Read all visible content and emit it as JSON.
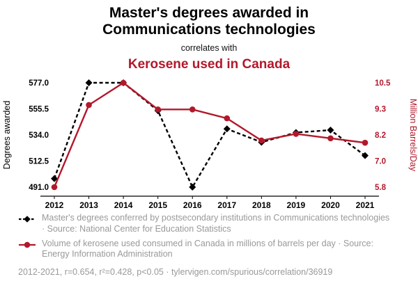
{
  "header": {
    "title": "Master's degrees awarded in Communications technologies",
    "connector": "correlates with",
    "subtitle": "Kerosene used in Canada"
  },
  "theme": {
    "accent_red": "#b2182b",
    "muted_gray": "#999999",
    "black": "#000000"
  },
  "chart_data": {
    "type": "line",
    "x": [
      "2012",
      "2013",
      "2014",
      "2015",
      "2016",
      "2017",
      "2018",
      "2019",
      "2020",
      "2021"
    ],
    "series": [
      {
        "name": "Master's degrees awarded in Communications technologies",
        "axis": "left",
        "color": "#000000",
        "line_style": "dashed",
        "marker": "diamond",
        "values": [
          498,
          577,
          577,
          554,
          491,
          539,
          528,
          536,
          538,
          517
        ]
      },
      {
        "name": "Kerosene used in Canada",
        "axis": "right",
        "color": "#b2182b",
        "line_style": "solid",
        "marker": "circle",
        "values": [
          5.8,
          9.5,
          10.5,
          9.3,
          9.3,
          8.9,
          7.9,
          8.2,
          8.0,
          7.8
        ]
      }
    ],
    "left_axis": {
      "label": "Degrees awarded",
      "range": [
        491,
        577
      ],
      "ticks": [
        "577.0",
        "555.5",
        "534.0",
        "512.5",
        "491.0"
      ]
    },
    "right_axis": {
      "label": "Million Barrels/Day",
      "range": [
        5.8,
        10.5
      ],
      "ticks": [
        "10.5",
        "9.3",
        "8.2",
        "7.0",
        "5.8"
      ]
    },
    "grid": false,
    "legend_position": "bottom"
  },
  "legend": {
    "items": [
      {
        "text": "Master's degrees conferred by postsecondary institutions in Communications technologies · Source: National Center for Education Statistics"
      },
      {
        "text": "Volume of kerosene used consumed in Canada in millions of barrels per day · Source: Energy Information Administration"
      }
    ]
  },
  "footer": {
    "text": "2012-2021, r=0.654, r²=0.428, p<0.05 · tylervigen.com/spurious/correlation/36919"
  }
}
